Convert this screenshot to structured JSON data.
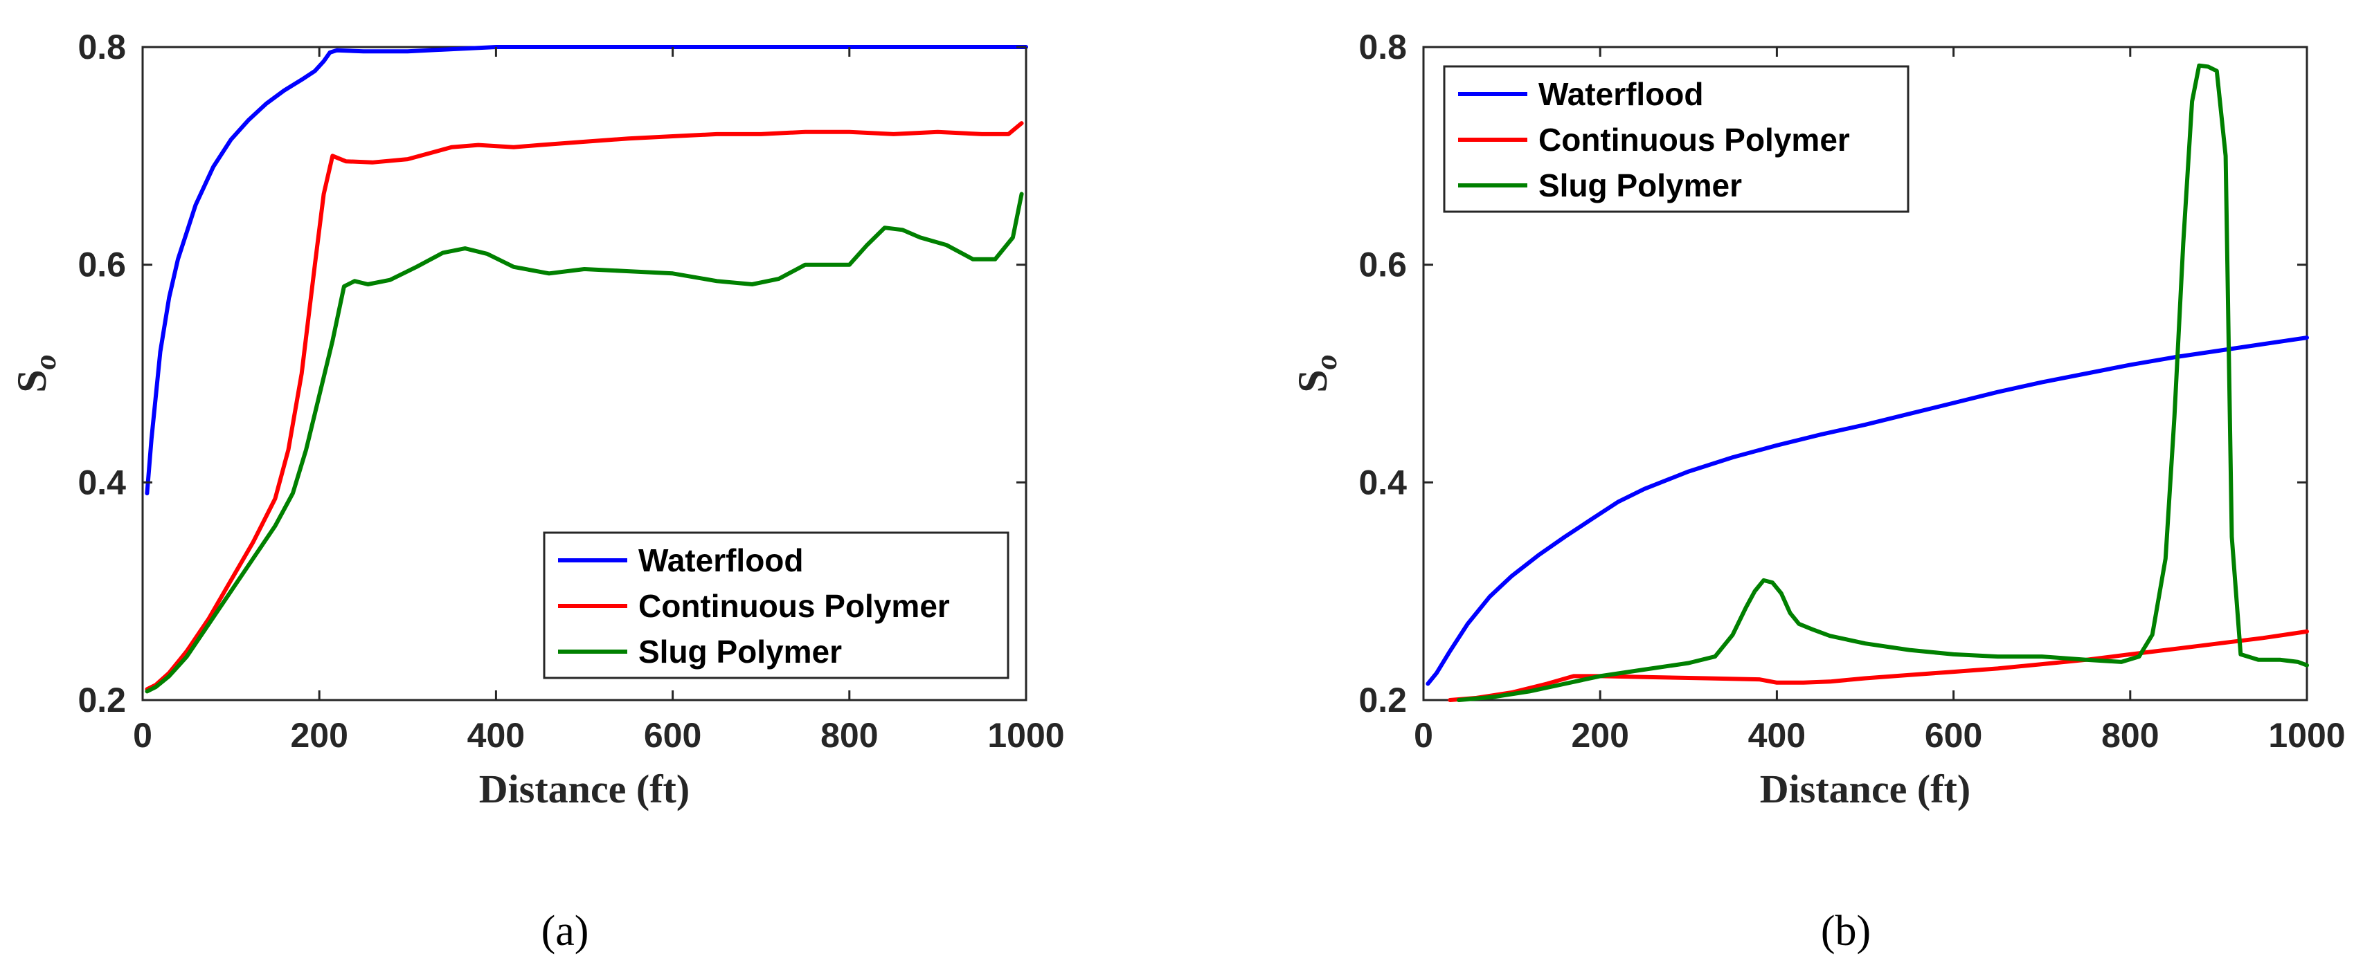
{
  "chart_data": [
    {
      "type": "line",
      "panel_label": "a",
      "xlabel": "Distance (ft)",
      "ylabel_main": "S",
      "ylabel_sub": "o",
      "xlim": [
        0,
        1000
      ],
      "ylim": [
        0.2,
        0.8
      ],
      "xticks": [
        0,
        200,
        400,
        600,
        800,
        1000
      ],
      "yticks": [
        0.2,
        0.4,
        0.6,
        0.8
      ],
      "legend_location": "lower-right",
      "series": [
        {
          "name": "Waterflood",
          "color": "#0000ff",
          "x": [
            5,
            10,
            20,
            30,
            40,
            50,
            60,
            80,
            100,
            120,
            140,
            160,
            180,
            195,
            205,
            212,
            220,
            250,
            300,
            350,
            400,
            500,
            600,
            700,
            800,
            900,
            1000
          ],
          "y": [
            0.39,
            0.44,
            0.52,
            0.57,
            0.605,
            0.63,
            0.655,
            0.69,
            0.715,
            0.733,
            0.748,
            0.76,
            0.77,
            0.778,
            0.787,
            0.795,
            0.797,
            0.796,
            0.796,
            0.798,
            0.8,
            0.8,
            0.8,
            0.8,
            0.8,
            0.8,
            0.8
          ]
        },
        {
          "name": "Continuous Polymer",
          "color": "#ff0000",
          "x": [
            5,
            15,
            30,
            50,
            75,
            100,
            125,
            150,
            165,
            180,
            195,
            205,
            215,
            230,
            260,
            300,
            350,
            380,
            420,
            450,
            500,
            550,
            600,
            650,
            700,
            750,
            800,
            850,
            900,
            950,
            980,
            995
          ],
          "y": [
            0.21,
            0.214,
            0.225,
            0.245,
            0.275,
            0.31,
            0.345,
            0.385,
            0.43,
            0.5,
            0.6,
            0.665,
            0.7,
            0.695,
            0.694,
            0.697,
            0.708,
            0.71,
            0.708,
            0.71,
            0.713,
            0.716,
            0.718,
            0.72,
            0.72,
            0.722,
            0.722,
            0.72,
            0.722,
            0.72,
            0.72,
            0.73
          ]
        },
        {
          "name": "Slug Polymer",
          "color": "#008000",
          "x": [
            5,
            15,
            30,
            50,
            75,
            100,
            125,
            150,
            170,
            185,
            200,
            215,
            228,
            240,
            255,
            280,
            310,
            340,
            365,
            390,
            420,
            460,
            500,
            550,
            600,
            650,
            690,
            720,
            750,
            775,
            800,
            820,
            840,
            860,
            880,
            910,
            940,
            965,
            985,
            995
          ],
          "y": [
            0.208,
            0.212,
            0.222,
            0.24,
            0.27,
            0.3,
            0.33,
            0.36,
            0.39,
            0.43,
            0.48,
            0.53,
            0.58,
            0.585,
            0.582,
            0.586,
            0.598,
            0.611,
            0.615,
            0.61,
            0.598,
            0.592,
            0.596,
            0.594,
            0.592,
            0.585,
            0.582,
            0.587,
            0.6,
            0.6,
            0.6,
            0.618,
            0.634,
            0.632,
            0.625,
            0.618,
            0.605,
            0.605,
            0.625,
            0.665
          ]
        }
      ]
    },
    {
      "type": "line",
      "panel_label": "b",
      "xlabel": "Distance (ft)",
      "ylabel_main": "S",
      "ylabel_sub": "o",
      "xlim": [
        0,
        1000
      ],
      "ylim": [
        0.2,
        0.8
      ],
      "xticks": [
        0,
        200,
        400,
        600,
        800,
        1000
      ],
      "yticks": [
        0.2,
        0.4,
        0.6,
        0.8
      ],
      "legend_location": "top-left",
      "series": [
        {
          "name": "Waterflood",
          "color": "#0000ff",
          "x": [
            5,
            15,
            30,
            50,
            75,
            100,
            130,
            160,
            190,
            220,
            250,
            300,
            350,
            400,
            450,
            500,
            550,
            600,
            650,
            700,
            750,
            800,
            850,
            900,
            950,
            1000
          ],
          "y": [
            0.215,
            0.225,
            0.245,
            0.27,
            0.295,
            0.314,
            0.333,
            0.35,
            0.366,
            0.382,
            0.394,
            0.41,
            0.423,
            0.434,
            0.444,
            0.453,
            0.463,
            0.473,
            0.483,
            0.492,
            0.5,
            0.508,
            0.515,
            0.521,
            0.527,
            0.533
          ]
        },
        {
          "name": "Continuous Polymer",
          "color": "#ff0000",
          "x": [
            30,
            60,
            100,
            140,
            170,
            200,
            260,
            320,
            380,
            400,
            430,
            460,
            500,
            550,
            600,
            650,
            700,
            750,
            800,
            850,
            900,
            950,
            1000
          ],
          "y": [
            0.2,
            0.202,
            0.207,
            0.215,
            0.222,
            0.222,
            0.221,
            0.22,
            0.219,
            0.216,
            0.216,
            0.217,
            0.22,
            0.223,
            0.226,
            0.229,
            0.233,
            0.237,
            0.242,
            0.247,
            0.252,
            0.257,
            0.263
          ]
        },
        {
          "name": "Slug Polymer",
          "color": "#008000",
          "x": [
            40,
            80,
            120,
            160,
            200,
            250,
            300,
            330,
            350,
            365,
            375,
            385,
            395,
            405,
            415,
            425,
            440,
            460,
            500,
            550,
            600,
            650,
            700,
            750,
            790,
            810,
            825,
            840,
            850,
            860,
            870,
            878,
            888,
            898,
            908,
            915,
            925,
            945,
            970,
            990,
            1000
          ],
          "y": [
            0.2,
            0.203,
            0.208,
            0.215,
            0.222,
            0.228,
            0.234,
            0.24,
            0.26,
            0.285,
            0.3,
            0.31,
            0.308,
            0.298,
            0.28,
            0.27,
            0.265,
            0.259,
            0.252,
            0.246,
            0.242,
            0.24,
            0.24,
            0.237,
            0.235,
            0.24,
            0.26,
            0.33,
            0.46,
            0.62,
            0.75,
            0.783,
            0.782,
            0.778,
            0.7,
            0.35,
            0.242,
            0.237,
            0.237,
            0.235,
            0.232
          ]
        }
      ]
    }
  ],
  "captions": [
    "(a)",
    "(b)"
  ]
}
